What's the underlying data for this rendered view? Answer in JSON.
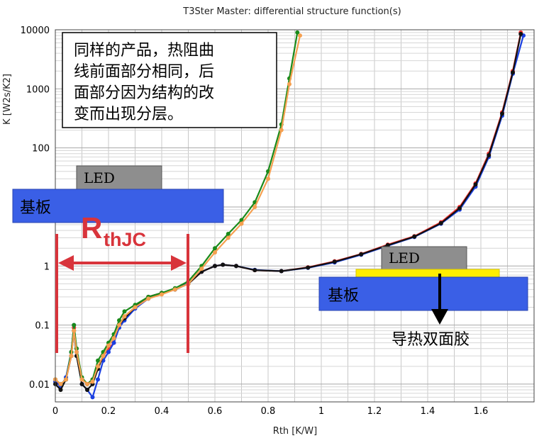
{
  "chart_data": {
    "type": "line",
    "title": "T3Ster Master: differential structure function(s)",
    "xlabel": "Rth  [K/W]",
    "ylabel": "K  [W2s/K2]",
    "xlim": [
      0,
      1.8
    ],
    "ylim": [
      0.005,
      10000
    ],
    "y_scale": "log",
    "grid": true,
    "x_ticks": [
      0,
      0.2,
      0.4,
      0.6,
      0.8,
      1,
      1.2,
      1.4,
      1.6
    ],
    "x_tick_labels": [
      "0",
      "0.2",
      "0.4",
      "0.6",
      "0.8",
      "1",
      "1.2",
      "1.4",
      "1.6"
    ],
    "y_ticks": [
      0.01,
      0.1,
      1,
      10,
      100,
      1000,
      10000
    ],
    "y_tick_labels": [
      "0.01",
      "0.1",
      "1",
      "10",
      "100",
      "1000",
      "10000"
    ],
    "series": [
      {
        "color": "#ff3030",
        "x": [
          0.0,
          0.02,
          0.04,
          0.06,
          0.07,
          0.08,
          0.1,
          0.12,
          0.14,
          0.16,
          0.18,
          0.2,
          0.22,
          0.24,
          0.26,
          0.3,
          0.35,
          0.4,
          0.45,
          0.5,
          0.55,
          0.6,
          0.63,
          0.68,
          0.75,
          0.85,
          0.95,
          1.05,
          1.15,
          1.25,
          1.35,
          1.45,
          1.52,
          1.58,
          1.63,
          1.68,
          1.72,
          1.75
        ],
        "y": [
          0.012,
          0.009,
          0.012,
          0.03,
          0.09,
          0.04,
          0.012,
          0.01,
          0.012,
          0.02,
          0.03,
          0.04,
          0.05,
          0.1,
          0.14,
          0.2,
          0.3,
          0.35,
          0.4,
          0.5,
          0.8,
          1.0,
          1.05,
          1.0,
          0.85,
          0.82,
          0.95,
          1.2,
          1.6,
          2.3,
          3.2,
          5.5,
          10,
          25,
          80,
          400,
          2000,
          9000
        ]
      },
      {
        "color": "#1a3fe0",
        "x": [
          0.0,
          0.02,
          0.04,
          0.06,
          0.07,
          0.08,
          0.1,
          0.12,
          0.14,
          0.16,
          0.18,
          0.2,
          0.22,
          0.24,
          0.26,
          0.3,
          0.35,
          0.4,
          0.45,
          0.5,
          0.55,
          0.6,
          0.63,
          0.68,
          0.75,
          0.85,
          0.95,
          1.05,
          1.15,
          1.25,
          1.35,
          1.45,
          1.52,
          1.58,
          1.63,
          1.68,
          1.72,
          1.76
        ],
        "y": [
          0.011,
          0.009,
          0.013,
          0.035,
          0.1,
          0.035,
          0.01,
          0.008,
          0.006,
          0.012,
          0.025,
          0.035,
          0.05,
          0.09,
          0.12,
          0.19,
          0.28,
          0.34,
          0.4,
          0.52,
          0.8,
          1.0,
          1.05,
          1.0,
          0.86,
          0.82,
          0.93,
          1.15,
          1.55,
          2.2,
          3.1,
          5.2,
          9,
          22,
          70,
          350,
          1800,
          8000
        ]
      },
      {
        "color": "#111111",
        "x": [
          0.0,
          0.02,
          0.04,
          0.06,
          0.07,
          0.08,
          0.1,
          0.12,
          0.14,
          0.16,
          0.18,
          0.2,
          0.22,
          0.24,
          0.26,
          0.3,
          0.35,
          0.4,
          0.45,
          0.5,
          0.55,
          0.6,
          0.63,
          0.68,
          0.75,
          0.85,
          0.95,
          1.05,
          1.15,
          1.25,
          1.35,
          1.45,
          1.52,
          1.58,
          1.63,
          1.68,
          1.72,
          1.75
        ],
        "y": [
          0.01,
          0.008,
          0.012,
          0.03,
          0.08,
          0.03,
          0.01,
          0.008,
          0.01,
          0.018,
          0.03,
          0.045,
          0.06,
          0.1,
          0.13,
          0.2,
          0.3,
          0.35,
          0.4,
          0.5,
          0.8,
          1.0,
          1.05,
          1.0,
          0.85,
          0.82,
          0.94,
          1.18,
          1.58,
          2.25,
          3.15,
          5.3,
          9.5,
          24,
          75,
          380,
          1900,
          8500
        ]
      },
      {
        "color": "#1a8a1a",
        "x": [
          0.0,
          0.02,
          0.04,
          0.06,
          0.07,
          0.08,
          0.1,
          0.12,
          0.14,
          0.16,
          0.18,
          0.2,
          0.22,
          0.24,
          0.26,
          0.3,
          0.35,
          0.4,
          0.45,
          0.5,
          0.55,
          0.6,
          0.65,
          0.7,
          0.75,
          0.8,
          0.85,
          0.88,
          0.91
        ],
        "y": [
          0.012,
          0.01,
          0.012,
          0.035,
          0.1,
          0.04,
          0.013,
          0.01,
          0.012,
          0.025,
          0.035,
          0.05,
          0.07,
          0.12,
          0.17,
          0.22,
          0.3,
          0.35,
          0.42,
          0.55,
          1.0,
          2.0,
          3.5,
          6,
          12,
          40,
          250,
          1500,
          9000
        ]
      },
      {
        "color": "#f5a050",
        "x": [
          0.0,
          0.02,
          0.04,
          0.06,
          0.07,
          0.08,
          0.1,
          0.12,
          0.14,
          0.16,
          0.18,
          0.2,
          0.22,
          0.24,
          0.26,
          0.3,
          0.35,
          0.4,
          0.45,
          0.5,
          0.55,
          0.6,
          0.65,
          0.7,
          0.75,
          0.8,
          0.85,
          0.88,
          0.92
        ],
        "y": [
          0.012,
          0.01,
          0.012,
          0.03,
          0.08,
          0.035,
          0.012,
          0.01,
          0.011,
          0.02,
          0.03,
          0.045,
          0.06,
          0.1,
          0.14,
          0.2,
          0.28,
          0.33,
          0.4,
          0.5,
          0.9,
          1.7,
          3.0,
          5.2,
          10,
          30,
          200,
          1200,
          8000
        ]
      }
    ],
    "annotations": {
      "note_lines": [
        "同样的产品，热阻曲",
        "线前面部分相同，后",
        "面部分因为结构的改",
        "变而出现分层。"
      ],
      "led_label": "LED",
      "substrate_label": "基板",
      "rth_main": "R",
      "rth_sub": "thJC",
      "led_label_2": "LED",
      "substrate_label_2": "基板",
      "tape_label": "导热双面胶"
    },
    "colors": {
      "substrate": "#3a5fe6",
      "led": "#8e8e8e",
      "tape": "#ffee00",
      "rth": "#d8343b"
    }
  }
}
